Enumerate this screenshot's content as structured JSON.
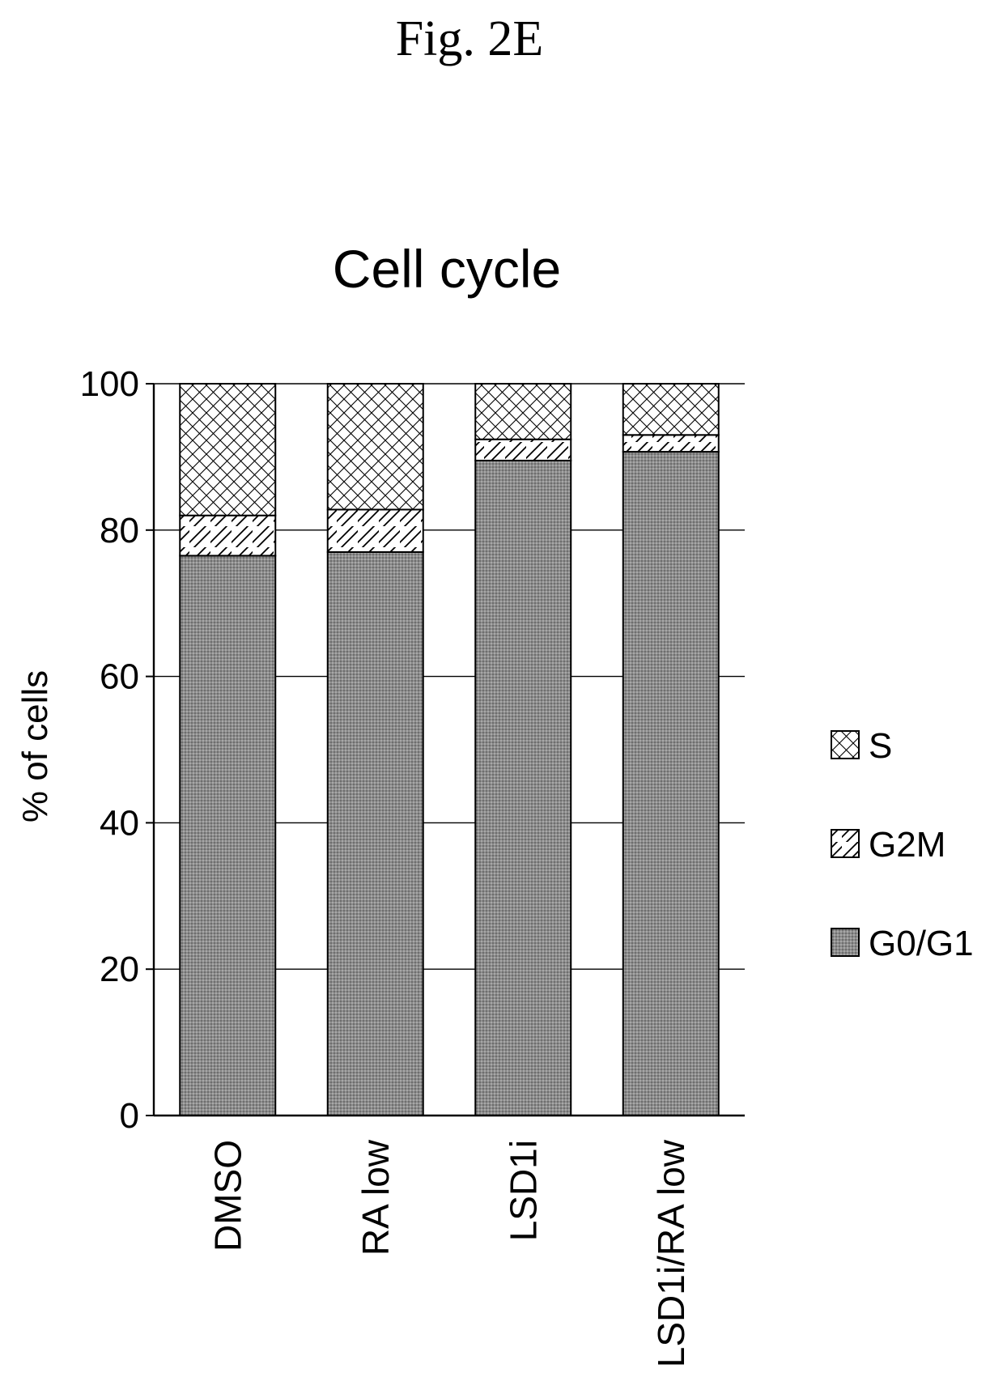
{
  "figure_label": "Fig. 2E",
  "chart_data": {
    "type": "bar",
    "stacked": true,
    "title": "Cell cycle",
    "xlabel": "",
    "ylabel": "% of cells",
    "ylim": [
      0,
      100
    ],
    "yticks": [
      0,
      20,
      40,
      60,
      80,
      100
    ],
    "grid": true,
    "legend_position": "right",
    "categories": [
      "DMSO",
      "RA low",
      "LSD1i",
      "LSD1i/RA low"
    ],
    "series": [
      {
        "name": "G0/G1",
        "pattern": "dense-dots",
        "color": "#8c8c8c",
        "values": [
          76.5,
          77.0,
          89.5,
          90.7
        ]
      },
      {
        "name": "G2M",
        "pattern": "diagonal-hatch",
        "color": "#ffffff",
        "values": [
          5.5,
          5.8,
          2.9,
          2.3
        ]
      },
      {
        "name": "S",
        "pattern": "crosshatch",
        "color": "#ffffff",
        "values": [
          18.0,
          17.2,
          7.6,
          7.0
        ]
      }
    ],
    "legend_order": [
      "S",
      "G2M",
      "G0/G1"
    ]
  }
}
